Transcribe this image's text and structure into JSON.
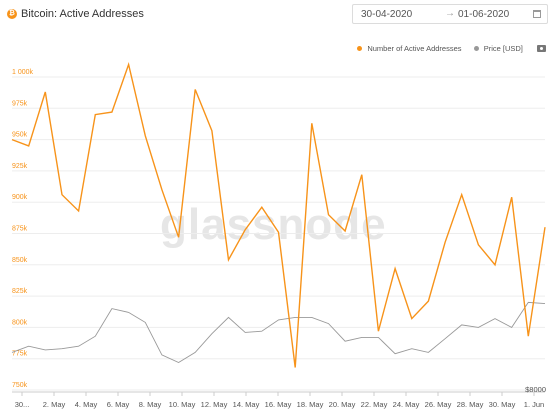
{
  "header": {
    "title": "Bitcoin: Active Addresses",
    "coin_icon": "bitcoin-icon",
    "date_from": "30-04-2020",
    "date_to": "01-06-2020",
    "arrow": "→",
    "calendar_icon": "calendar-icon"
  },
  "legend": {
    "items": [
      {
        "label": "Number of Active Addresses",
        "color": "#f7931a"
      },
      {
        "label": "Price [USD]",
        "color": "#999999"
      }
    ],
    "camera_icon": "camera-icon"
  },
  "watermark": "glassnode",
  "chart_data": {
    "type": "line",
    "x_tick_labels": [
      "30...",
      "2. May",
      "4. May",
      "6. May",
      "8. May",
      "10. May",
      "12. May",
      "14. May",
      "16. May",
      "18. May",
      "20. May",
      "22. May",
      "24. May",
      "26. May",
      "28. May",
      "30. May",
      "1. Jun"
    ],
    "y_left_ticks": [
      "750k",
      "775k",
      "800k",
      "825k",
      "850k",
      "875k",
      "900k",
      "925k",
      "950k",
      "975k",
      "1 000k"
    ],
    "y_left_range": [
      750000,
      1000000
    ],
    "y_right_tick": "$8000",
    "series": [
      {
        "name": "Number of Active Addresses",
        "color": "#f7931a",
        "values": [
          950000,
          945000,
          988000,
          906000,
          893000,
          970000,
          972000,
          1010000,
          953000,
          910000,
          872000,
          990000,
          957000,
          854000,
          878000,
          896000,
          876000,
          768000,
          963000,
          890000,
          877000,
          922000,
          797000,
          847000,
          807000,
          821000,
          868000,
          906000,
          866000,
          850000,
          904000,
          793000,
          880000
        ]
      },
      {
        "name": "Price [USD]",
        "color": "#999999",
        "values": [
          780000,
          785000,
          782000,
          783000,
          785000,
          793000,
          815000,
          812000,
          804000,
          778000,
          772000,
          780000,
          795000,
          808000,
          796000,
          797000,
          806000,
          808000,
          808000,
          803000,
          789000,
          792000,
          792000,
          779000,
          783000,
          780000,
          791000,
          802000,
          800000,
          807000,
          800000,
          820000,
          819000
        ]
      }
    ],
    "grid": "horizontal",
    "legend_position": "top-right"
  }
}
